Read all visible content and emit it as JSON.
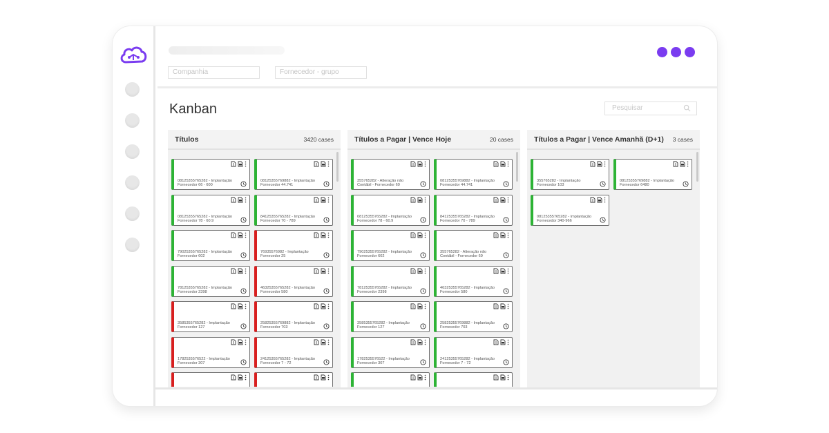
{
  "app": {
    "filters": {
      "company_placeholder": "Companhia",
      "supplier_group_placeholder": "Fornecedor - grupo"
    },
    "page_title": "Kanban",
    "search_placeholder": "Pesquisar",
    "accent_color": "#7a3cf0",
    "status_colors": {
      "ok": "#2db335",
      "late": "#d81f1f"
    }
  },
  "columns": [
    {
      "title": "Títulos",
      "count": "3420 cases",
      "cards": [
        {
          "status": "green",
          "line1": "08125355765282 - Implantação",
          "line2": "Fornecedor 66 - 600"
        },
        {
          "status": "green",
          "line1": "08125355769882 - Implantação",
          "line2": "Fornecedor 44.741"
        },
        {
          "status": "green",
          "line1": "08125355765282 - Implantação",
          "line2": "Fornecedor 78 - 60.9"
        },
        {
          "status": "green",
          "line1": "84125355765282 - Implantação",
          "line2": "Fornecedor 70 - 789"
        },
        {
          "status": "green",
          "line1": "79025355765282 - Implantação",
          "line2": "Fornecedor 602"
        },
        {
          "status": "red",
          "line1": "76935576982 - Implantação",
          "line2": "Fornecedor 25"
        },
        {
          "status": "green",
          "line1": "78125355765282 - Implantação",
          "line2": "Fornecedor 2398"
        },
        {
          "status": "red",
          "line1": "46325355765282 - Implantação",
          "line2": "Fornecedor 580"
        },
        {
          "status": "red",
          "line1": "3585355765282 - Implantação",
          "line2": "Fornecedor 127"
        },
        {
          "status": "red",
          "line1": "25825355769882 - Implantação",
          "line2": "Fornecedor 703"
        },
        {
          "status": "red",
          "line1": "1782535576522 - Implantação",
          "line2": "Fornecedor 307"
        },
        {
          "status": "red",
          "line1": "24125355765282 - Implantação",
          "line2": "Fornecedor 7 - 72"
        },
        {
          "status": "red",
          "line1": "",
          "line2": ""
        },
        {
          "status": "red",
          "line1": "",
          "line2": ""
        }
      ]
    },
    {
      "title": "Títulos a Pagar | Vence Hoje",
      "count": "20 cases",
      "cards": [
        {
          "status": "green",
          "line1": "355765282 - Alteração não",
          "line2": "Contábil - Fornecedor 69"
        },
        {
          "status": "green",
          "line1": "08125355769882 - Implantação",
          "line2": "Fornecedor 44.741"
        },
        {
          "status": "green",
          "line1": "08125355765282 - Implantação",
          "line2": "Fornecedor 78 - 60.9"
        },
        {
          "status": "green",
          "line1": "84125355765282 - Implantação",
          "line2": "Fornecedor 70 - 789"
        },
        {
          "status": "green",
          "line1": "79025355765282 - Implantação",
          "line2": "Fornecedor 602"
        },
        {
          "status": "green",
          "line1": "355765282 - Alteração não",
          "line2": "Contábil - Fornecedor 69"
        },
        {
          "status": "green",
          "line1": "78125355765282 - Implantação",
          "line2": "Fornecedor 2398"
        },
        {
          "status": "green",
          "line1": "46325355765282 - Implantação",
          "line2": "Fornecedor 580"
        },
        {
          "status": "green",
          "line1": "3585355765282 - Implantação",
          "line2": "Fornecedor 127"
        },
        {
          "status": "green",
          "line1": "25825355769882 - Implantação",
          "line2": "Fornecedor 703"
        },
        {
          "status": "green",
          "line1": "1782535576522 - Implantação",
          "line2": "Fornecedor 307"
        },
        {
          "status": "green",
          "line1": "24125355765282 - Implantação",
          "line2": "Fornecedor 7 - 72"
        },
        {
          "status": "green",
          "line1": "",
          "line2": ""
        },
        {
          "status": "green",
          "line1": "",
          "line2": ""
        }
      ]
    },
    {
      "title": "Títulos a Pagar | Vence Amanhã (D+1)",
      "count": "3 cases",
      "cards": [
        {
          "status": "green",
          "line1": "355765282 - Implantação",
          "line2": "Fornecedor 103"
        },
        {
          "status": "green",
          "line1": "08125355769882 - Implantação",
          "line2": "Fornecedor 6480"
        },
        {
          "status": "green",
          "line1": "08125355765282 - Implantação",
          "line2": "Fornecedor 340-966"
        }
      ]
    }
  ]
}
